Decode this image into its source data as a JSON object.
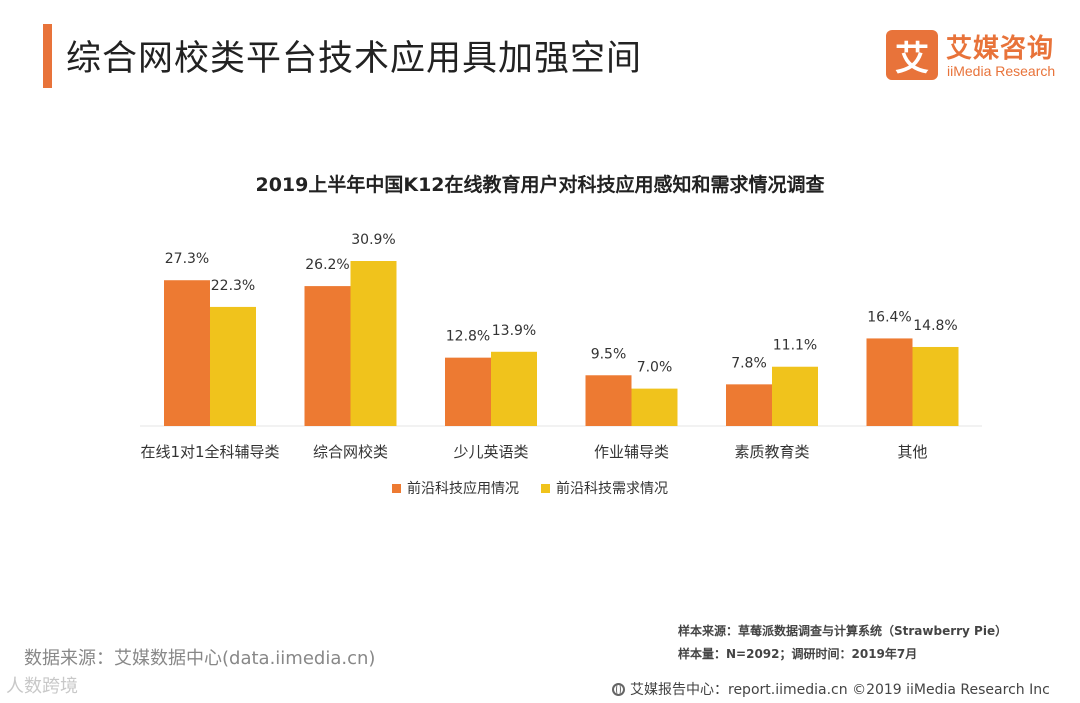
{
  "header": {
    "title": "综合网校类平台技术应用具加强空间",
    "logo_mark": "艾",
    "logo_cn": "艾媒咨询",
    "logo_en": "iiMedia Research"
  },
  "colors": {
    "accent": "#e8733a",
    "series_usage": "#ed7a32",
    "series_demand": "#f0c31c"
  },
  "chart_data": {
    "type": "bar",
    "title": "2019上半年中国K12在线教育用户对科技应用感知和需求情况调查",
    "categories": [
      "在线1对1全科辅导类",
      "综合网校类",
      "少儿英语类",
      "作业辅导类",
      "素质教育类",
      "其他"
    ],
    "series": [
      {
        "name": "前沿科技应用情况",
        "values": [
          27.3,
          26.2,
          12.8,
          9.5,
          7.8,
          16.4
        ],
        "labels": [
          "27.3%",
          "26.2%",
          "12.8%",
          "9.5%",
          "7.8%",
          "16.4%"
        ]
      },
      {
        "name": "前沿科技需求情况",
        "values": [
          22.3,
          30.9,
          13.9,
          7.0,
          11.1,
          14.8
        ],
        "labels": [
          "22.3%",
          "30.9%",
          "13.9%",
          "7.0%",
          "11.1%",
          "14.8%"
        ]
      }
    ],
    "unit": "%",
    "ylim": [
      0,
      30.9
    ],
    "legend_position": "bottom",
    "grid": false,
    "xlabel": "",
    "ylabel": ""
  },
  "footer": {
    "data_source": "数据来源：艾媒数据中心(data.iimedia.cn)",
    "sample_source": "样本来源：草莓派数据调查与计算系统（Strawberry  Pie）",
    "sample_size": "样本量：N=2092；调研时间：2019年7月",
    "report_center": "艾媒报告中心：report.iimedia.cn  ©2019  iiMedia Research  Inc",
    "watermark": "人数跨境"
  }
}
